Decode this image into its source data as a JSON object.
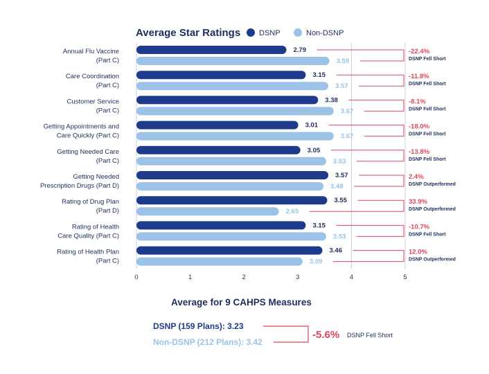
{
  "chart_data": {
    "type": "bar",
    "orientation": "horizontal",
    "title": "Average Star Ratings",
    "categories": [
      [
        "Annual Flu Vaccine",
        "(Part C)"
      ],
      [
        "Care Coordination",
        "(Part C)"
      ],
      [
        "Customer Service",
        "(Part C)"
      ],
      [
        "Getting Appointments and",
        "Care Quickly (Part C)"
      ],
      [
        "Getting Needed Care",
        "(Part C)"
      ],
      [
        "Getting Needed",
        "Prescription Drugs (Part D)"
      ],
      [
        "Rating of Drug Plan",
        "(Part D)"
      ],
      [
        "Rating of Health",
        "Care Quality (Part C)"
      ],
      [
        "Rating of Health Plan",
        "(Part C)"
      ]
    ],
    "series": [
      {
        "name": "DSNP",
        "color": "#1e3a8a",
        "values": [
          2.79,
          3.15,
          3.38,
          3.01,
          3.05,
          3.57,
          3.55,
          3.15,
          3.46
        ]
      },
      {
        "name": "Non-DSNP",
        "color": "#9cc2e8",
        "values": [
          3.59,
          3.57,
          3.67,
          3.67,
          3.53,
          3.48,
          2.65,
          3.53,
          3.09
        ]
      }
    ],
    "value_labels": {
      "DSNP": [
        "2.79",
        "3.15",
        "3.38",
        "3.01",
        "3.05",
        "3.57",
        "3.55",
        "3.15",
        "3.46"
      ],
      "Non-DSNP": [
        "3.59",
        "3.57",
        "3.67",
        "3.67",
        "3.53",
        "3.48",
        "2.65",
        "3.53",
        "3.09"
      ]
    },
    "differences": [
      {
        "pct": "-22.4%",
        "note": "DSNP Fell Short"
      },
      {
        "pct": "-11.8%",
        "note": "DSNP Fell Short"
      },
      {
        "pct": "-8.1%",
        "note": "DSNP Fell Short"
      },
      {
        "pct": "-18.0%",
        "note": "DSNP Fell Short"
      },
      {
        "pct": "-13.8%",
        "note": "DSNP Fell Short"
      },
      {
        "pct": "2.4%",
        "note": "DSNP Outperformed"
      },
      {
        "pct": "33.9%",
        "note": "DSNP Outperformed"
      },
      {
        "pct": "-10.7%",
        "note": "DSNP Fell Short"
      },
      {
        "pct": "12.0%",
        "note": "DSNP Outperformed"
      }
    ],
    "xlim": [
      0,
      5
    ],
    "xticks": [
      "0",
      "1",
      "2",
      "3",
      "4",
      "5"
    ],
    "reference_lines": [
      4,
      5
    ],
    "summary": {
      "title": "Average for 9 CAHPS Measures",
      "dsnp_label": "DSNP (159 Plans): 3.23",
      "non_dsnp_label": "Non-DSNP (212 Plans): 3.42",
      "pct": "-5.6%",
      "note": "DSNP Fell Short"
    },
    "colors": {
      "accent": "#e0445a",
      "text": "#1e2d5c",
      "grid": "#c8ccd4"
    }
  }
}
